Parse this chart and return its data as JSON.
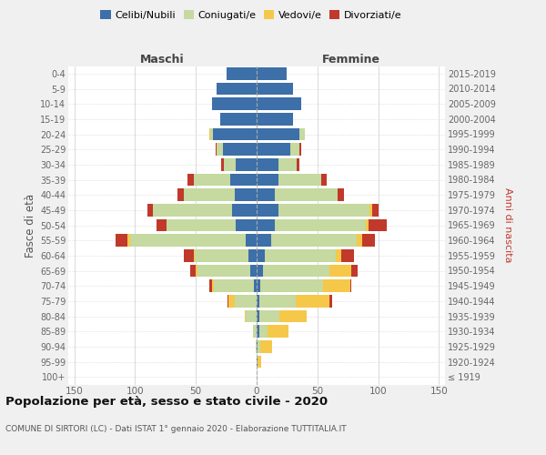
{
  "age_groups": [
    "100+",
    "95-99",
    "90-94",
    "85-89",
    "80-84",
    "75-79",
    "70-74",
    "65-69",
    "60-64",
    "55-59",
    "50-54",
    "45-49",
    "40-44",
    "35-39",
    "30-34",
    "25-29",
    "20-24",
    "15-19",
    "10-14",
    "5-9",
    "0-4"
  ],
  "birth_years": [
    "≤ 1919",
    "1920-1924",
    "1925-1929",
    "1930-1934",
    "1935-1939",
    "1940-1944",
    "1945-1949",
    "1950-1954",
    "1955-1959",
    "1960-1964",
    "1965-1969",
    "1970-1974",
    "1975-1979",
    "1980-1984",
    "1985-1989",
    "1990-1994",
    "1995-1999",
    "2000-2004",
    "2005-2009",
    "2010-2014",
    "2015-2019"
  ],
  "male_celibe": [
    0,
    0,
    0,
    0,
    0,
    0,
    2,
    5,
    7,
    9,
    17,
    20,
    18,
    22,
    17,
    28,
    36,
    30,
    37,
    33,
    25
  ],
  "male_coniugato": [
    0,
    0,
    1,
    3,
    9,
    18,
    33,
    44,
    44,
    95,
    57,
    65,
    42,
    30,
    10,
    5,
    2,
    0,
    0,
    0,
    0
  ],
  "male_vedovo": [
    0,
    0,
    0,
    0,
    1,
    5,
    2,
    1,
    1,
    2,
    0,
    0,
    0,
    0,
    0,
    0,
    1,
    0,
    0,
    0,
    0
  ],
  "male_divorziato": [
    0,
    0,
    0,
    0,
    0,
    1,
    2,
    5,
    8,
    10,
    8,
    5,
    5,
    5,
    2,
    1,
    0,
    0,
    0,
    0,
    0
  ],
  "female_nubile": [
    0,
    1,
    1,
    2,
    2,
    2,
    3,
    5,
    7,
    12,
    15,
    18,
    15,
    18,
    18,
    28,
    35,
    30,
    37,
    30,
    25
  ],
  "female_coniugata": [
    0,
    0,
    2,
    7,
    17,
    30,
    52,
    55,
    58,
    70,
    75,
    75,
    52,
    35,
    15,
    7,
    5,
    0,
    0,
    0,
    0
  ],
  "female_vedova": [
    0,
    3,
    10,
    17,
    22,
    28,
    22,
    18,
    5,
    5,
    2,
    2,
    0,
    0,
    0,
    0,
    0,
    0,
    0,
    0,
    0
  ],
  "female_divorziata": [
    0,
    0,
    0,
    0,
    0,
    2,
    1,
    5,
    10,
    10,
    15,
    5,
    5,
    5,
    2,
    2,
    0,
    0,
    0,
    0,
    0
  ],
  "colors": {
    "celibe": "#3d6fa8",
    "coniugato": "#c5d9a0",
    "vedovo": "#f5c84a",
    "divorziato": "#c0392b"
  },
  "xlim": 155,
  "title": "Popolazione per età, sesso e stato civile - 2020",
  "subtitle": "COMUNE DI SIRTORI (LC) - Dati ISTAT 1° gennaio 2020 - Elaborazione TUTTITALIA.IT",
  "ylabel_left": "Fasce di età",
  "ylabel_right": "Anni di nascita",
  "legend_labels": [
    "Celibi/Nubili",
    "Coniugati/e",
    "Vedovi/e",
    "Divorziati/e"
  ],
  "maschi_label": "Maschi",
  "femmine_label": "Femmine",
  "background_color": "#f0f0f0",
  "plot_background": "#ffffff",
  "grid_color": "#cccccc"
}
